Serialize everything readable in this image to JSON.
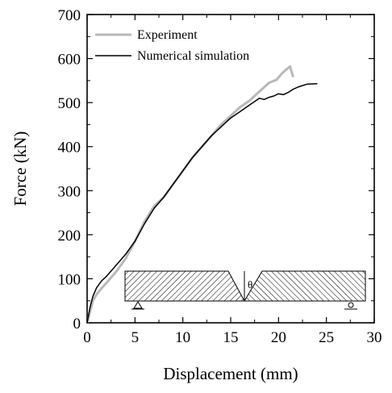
{
  "chart_data": {
    "type": "line",
    "xlabel": "Displacement (mm)",
    "ylabel": "Force (kN)",
    "xlim": [
      0,
      30
    ],
    "ylim": [
      0,
      700
    ],
    "x_ticks": [
      "0",
      "5",
      "10",
      "15",
      "20",
      "25",
      "30"
    ],
    "y_ticks": [
      "0",
      "100",
      "200",
      "300",
      "400",
      "500",
      "600",
      "700"
    ],
    "grid": false,
    "legend_position": "top-left",
    "series": [
      {
        "name": "Experiment",
        "color": "#b8b8b8",
        "x": [
          0,
          0.3,
          0.6,
          1.0,
          1.5,
          2.0,
          3.0,
          4.0,
          5.0,
          6.0,
          7.0,
          8.0,
          9.0,
          10.0,
          11.0,
          12.0,
          13.0,
          14.0,
          15.0,
          16.0,
          17.0,
          18.0,
          19.0,
          19.8,
          20.3,
          20.8,
          21.2,
          21.5
        ],
        "y": [
          0,
          25,
          50,
          65,
          78,
          90,
          115,
          145,
          185,
          230,
          265,
          285,
          315,
          345,
          375,
          400,
          425,
          450,
          470,
          490,
          505,
          525,
          545,
          552,
          565,
          575,
          582,
          560
        ]
      },
      {
        "name": "Numerical simulation",
        "color": "#000000",
        "x": [
          0,
          0.3,
          0.6,
          1.0,
          1.5,
          2.0,
          3.0,
          4.0,
          5.0,
          6.0,
          7.0,
          8.0,
          9.0,
          10.0,
          11.0,
          12.0,
          13.0,
          14.0,
          15.0,
          16.0,
          17.0,
          18.0,
          18.5,
          19.0,
          19.5,
          20.0,
          20.5,
          21.0,
          21.5,
          22.0,
          23.0,
          24.0
        ],
        "y": [
          0,
          35,
          60,
          80,
          95,
          105,
          130,
          155,
          185,
          225,
          260,
          285,
          315,
          345,
          375,
          400,
          425,
          445,
          465,
          480,
          495,
          510,
          507,
          512,
          515,
          520,
          518,
          523,
          530,
          535,
          542,
          543
        ]
      }
    ],
    "inset": {
      "angle_label": "θ"
    }
  }
}
